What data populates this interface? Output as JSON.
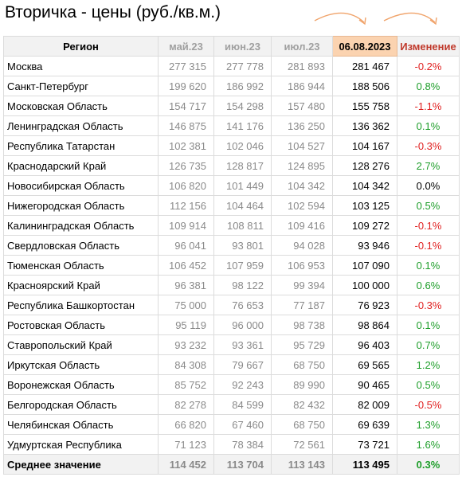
{
  "title": "Вторичка - цены (руб./кв.м.)",
  "colors": {
    "current_header": "#fbd3b0",
    "negative": "#e02020",
    "positive": "#1e9e2a",
    "arrow": "#f0a36a"
  },
  "table": {
    "headers": [
      "Регион",
      "май.23",
      "июн.23",
      "июл.23",
      "06.08.2023",
      "Изменение"
    ],
    "rows": [
      {
        "region": "Москва",
        "may": "277 315",
        "jun": "277 778",
        "jul": "281 893",
        "cur": "281 467",
        "chg": "-0.2%"
      },
      {
        "region": "Санкт-Петербург",
        "may": "199 620",
        "jun": "186 992",
        "jul": "186 944",
        "cur": "188 506",
        "chg": "0.8%"
      },
      {
        "region": "Московская Область",
        "may": "154 717",
        "jun": "154 298",
        "jul": "157 480",
        "cur": "155 758",
        "chg": "-1.1%"
      },
      {
        "region": "Ленинградская Область",
        "may": "146 875",
        "jun": "141 176",
        "jul": "136 250",
        "cur": "136 362",
        "chg": "0.1%"
      },
      {
        "region": "Республика Татарстан",
        "may": "102 381",
        "jun": "102 046",
        "jul": "104 527",
        "cur": "104 167",
        "chg": "-0.3%"
      },
      {
        "region": "Краснодарский Край",
        "may": "126 735",
        "jun": "128 817",
        "jul": "124 895",
        "cur": "128 276",
        "chg": "2.7%"
      },
      {
        "region": "Новосибирская Область",
        "may": "106 820",
        "jun": "101 449",
        "jul": "104 342",
        "cur": "104 342",
        "chg": "0.0%"
      },
      {
        "region": "Нижегородская Область",
        "may": "112 156",
        "jun": "104 464",
        "jul": "102 594",
        "cur": "103 125",
        "chg": "0.5%"
      },
      {
        "region": "Калининградская Область",
        "may": "109 914",
        "jun": "108 811",
        "jul": "109 416",
        "cur": "109 272",
        "chg": "-0.1%"
      },
      {
        "region": "Свердловская Область",
        "may": "96 041",
        "jun": "93 801",
        "jul": "94 028",
        "cur": "93 946",
        "chg": "-0.1%"
      },
      {
        "region": "Тюменская Область",
        "may": "106 452",
        "jun": "107 959",
        "jul": "106 953",
        "cur": "107 090",
        "chg": "0.1%"
      },
      {
        "region": "Красноярский Край",
        "may": "96 381",
        "jun": "98 122",
        "jul": "99 394",
        "cur": "100 000",
        "chg": "0.6%"
      },
      {
        "region": "Республика Башкортостан",
        "may": "75 000",
        "jun": "76 653",
        "jul": "77 187",
        "cur": "76 923",
        "chg": "-0.3%"
      },
      {
        "region": "Ростовская Область",
        "may": "95 119",
        "jun": "96 000",
        "jul": "98 738",
        "cur": "98 864",
        "chg": "0.1%"
      },
      {
        "region": "Ставропольский Край",
        "may": "93 232",
        "jun": "93 361",
        "jul": "95 729",
        "cur": "96 403",
        "chg": "0.7%"
      },
      {
        "region": "Иркутская Область",
        "may": "84 308",
        "jun": "79 667",
        "jul": "68 750",
        "cur": "69 565",
        "chg": "1.2%"
      },
      {
        "region": "Воронежская Область",
        "may": "85 752",
        "jun": "92 243",
        "jul": "89 990",
        "cur": "90 465",
        "chg": "0.5%"
      },
      {
        "region": "Белгородская Область",
        "may": "82 278",
        "jun": "84 599",
        "jul": "82 432",
        "cur": "82 009",
        "chg": "-0.5%"
      },
      {
        "region": "Челябинская Область",
        "may": "66 820",
        "jun": "67 460",
        "jul": "68 750",
        "cur": "69 639",
        "chg": "1.3%"
      },
      {
        "region": "Удмуртская Республика",
        "may": "71 123",
        "jun": "78 384",
        "jul": "72 561",
        "cur": "73 721",
        "chg": "1.6%"
      }
    ],
    "average": {
      "region": "Среднее значение",
      "may": "114 452",
      "jun": "113 704",
      "jul": "113 143",
      "cur": "113 495",
      "chg": "0.3%"
    }
  },
  "chart_data": {
    "type": "table",
    "title": "Вторичка - цены (руб./кв.м.)",
    "columns": [
      "Регион",
      "май.23",
      "июн.23",
      "июл.23",
      "06.08.2023",
      "Изменение"
    ]
  }
}
